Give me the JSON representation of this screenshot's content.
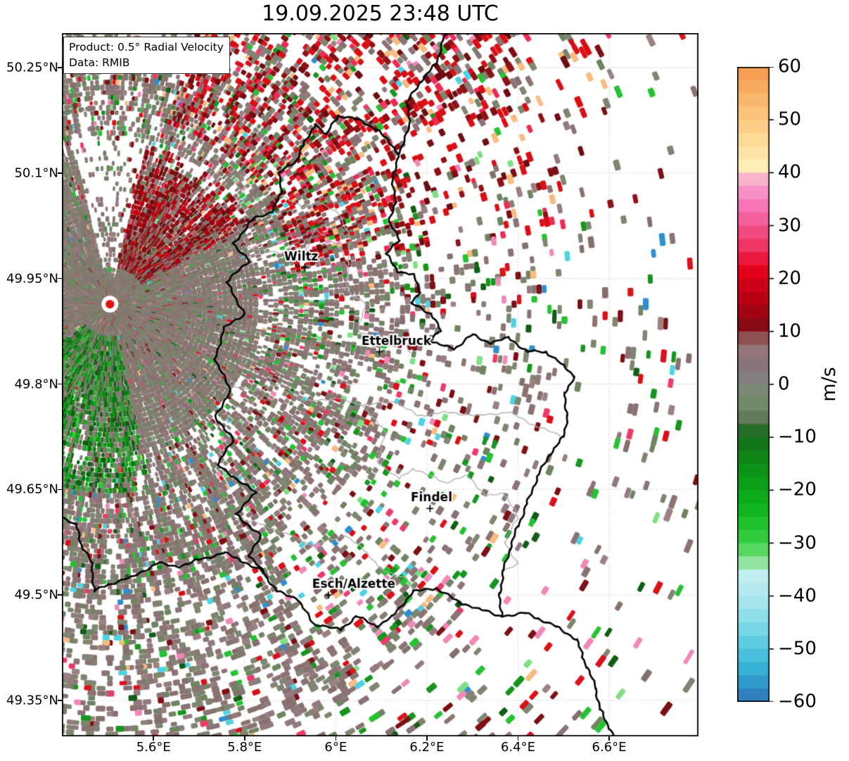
{
  "title": "19.09.2025 23:48 UTC",
  "info_box": {
    "line1": "Product: 0.5° Radial Velocity",
    "line2": "Data: RMIB"
  },
  "axes": {
    "x_ticks": [
      {
        "lon": 5.6,
        "label": "5.6°E"
      },
      {
        "lon": 5.8,
        "label": "5.8°E"
      },
      {
        "lon": 6.0,
        "label": "6°E"
      },
      {
        "lon": 6.2,
        "label": "6.2°E"
      },
      {
        "lon": 6.4,
        "label": "6.4°E"
      },
      {
        "lon": 6.6,
        "label": "6.6°E"
      }
    ],
    "y_ticks": [
      {
        "lat": 50.25,
        "label": "50.25°N"
      },
      {
        "lat": 50.1,
        "label": "50.1°N"
      },
      {
        "lat": 49.95,
        "label": "49.95°N"
      },
      {
        "lat": 49.8,
        "label": "49.8°N"
      },
      {
        "lat": 49.65,
        "label": "49.65°N"
      },
      {
        "lat": 49.5,
        "label": "49.5°N"
      },
      {
        "lat": 49.35,
        "label": "49.35°N"
      }
    ]
  },
  "colorbar": {
    "unit": "m/s",
    "ticks": [
      {
        "v": 60,
        "label": "60"
      },
      {
        "v": 50,
        "label": "50"
      },
      {
        "v": 40,
        "label": "40"
      },
      {
        "v": 30,
        "label": "30"
      },
      {
        "v": 20,
        "label": "20"
      },
      {
        "v": 10,
        "label": "10"
      },
      {
        "v": 0,
        "label": "0"
      },
      {
        "v": -10,
        "label": "−10"
      },
      {
        "v": -20,
        "label": "−20"
      },
      {
        "v": -30,
        "label": "−30"
      },
      {
        "v": -40,
        "label": "−40"
      },
      {
        "v": -50,
        "label": "−50"
      },
      {
        "v": -60,
        "label": "−60"
      }
    ],
    "band_step": 2.5
  },
  "chart_data": {
    "type": "heatmap",
    "subtype": "radar_ppi_radial_velocity",
    "title": "19.09.2025 23:48 UTC",
    "product": "0.5° Radial Velocity",
    "source": "RMIB",
    "units": "m/s",
    "value_range": [
      -60,
      60
    ],
    "extent": {
      "lon_min": 5.399,
      "lon_max": 6.796,
      "lat_min": 49.299,
      "lat_max": 50.299
    },
    "radar_site": {
      "lon": 5.5044,
      "lat": 49.9135
    },
    "cities": [
      {
        "name": "Wiltz",
        "lon": 5.932,
        "lat": 49.966,
        "label_dx": -5
      },
      {
        "name": "Ettelbruck",
        "lon": 6.096,
        "lat": 49.846,
        "label_dx": 24
      },
      {
        "name": "Findel",
        "lon": 6.207,
        "lat": 49.623,
        "label_dx": 2
      },
      {
        "name": "Esch/Alzette",
        "lon": 5.984,
        "lat": 49.5,
        "label_dx": 36
      }
    ],
    "grid": {
      "lons": [
        5.6,
        5.8,
        6.0,
        6.2,
        6.4,
        6.6
      ],
      "lats": [
        49.35,
        49.5,
        49.65,
        49.8,
        49.95,
        50.1,
        50.25
      ]
    },
    "colormap_stops": [
      [
        60,
        "#f5994e"
      ],
      [
        50,
        "#fcc97f"
      ],
      [
        45,
        "#fdde9f"
      ],
      [
        41,
        "#fdeeb9"
      ],
      [
        40,
        "#f9c4cd"
      ],
      [
        35,
        "#f87fc3"
      ],
      [
        30,
        "#f1558d"
      ],
      [
        25,
        "#ee2a55"
      ],
      [
        22,
        "#e8001c"
      ],
      [
        15,
        "#b00011"
      ],
      [
        10,
        "#7c0f13"
      ],
      [
        8,
        "#9b777b"
      ],
      [
        4,
        "#8a7478"
      ],
      [
        1,
        "#828082"
      ],
      [
        0,
        "#7e8878"
      ],
      [
        -4,
        "#6f8a67"
      ],
      [
        -8,
        "#596f52"
      ],
      [
        -9,
        "#166b1b"
      ],
      [
        -15,
        "#0d8c15"
      ],
      [
        -20,
        "#0aa518"
      ],
      [
        -25,
        "#15bd22"
      ],
      [
        -30,
        "#3bcf46"
      ],
      [
        -33,
        "#7fe085"
      ],
      [
        -36,
        "#c2eff0"
      ],
      [
        -40,
        "#aee8ee"
      ],
      [
        -45,
        "#84dce8"
      ],
      [
        -50,
        "#50c8de"
      ],
      [
        -55,
        "#2fa8d2"
      ],
      [
        -60,
        "#2f74b8"
      ]
    ],
    "borders": {
      "country": [
        [
          [
            5.955,
            50.17
          ],
          [
            5.98,
            50.155
          ],
          [
            6.005,
            50.182
          ],
          [
            6.05,
            50.176
          ],
          [
            6.09,
            50.162
          ],
          [
            6.115,
            50.146
          ],
          [
            6.138,
            50.128
          ],
          [
            6.125,
            50.095
          ],
          [
            6.131,
            50.058
          ],
          [
            6.118,
            50.03
          ],
          [
            6.14,
            50.004
          ],
          [
            6.11,
            49.985
          ],
          [
            6.136,
            49.96
          ],
          [
            6.17,
            49.956
          ],
          [
            6.186,
            49.93
          ],
          [
            6.165,
            49.915
          ],
          [
            6.21,
            49.9
          ],
          [
            6.23,
            49.876
          ],
          [
            6.205,
            49.86
          ],
          [
            6.26,
            49.85
          ],
          [
            6.3,
            49.87
          ],
          [
            6.34,
            49.858
          ],
          [
            6.38,
            49.866
          ],
          [
            6.42,
            49.846
          ],
          [
            6.462,
            49.846
          ],
          [
            6.5,
            49.826
          ],
          [
            6.525,
            49.81
          ],
          [
            6.502,
            49.788
          ],
          [
            6.508,
            49.755
          ],
          [
            6.5,
            49.725
          ],
          [
            6.47,
            49.7
          ],
          [
            6.442,
            49.668
          ],
          [
            6.42,
            49.63
          ],
          [
            6.4,
            49.598
          ],
          [
            6.382,
            49.565
          ],
          [
            6.368,
            49.535
          ],
          [
            6.36,
            49.503
          ],
          [
            6.364,
            49.47
          ],
          [
            6.315,
            49.48
          ],
          [
            6.27,
            49.49
          ],
          [
            6.22,
            49.51
          ],
          [
            6.17,
            49.505
          ],
          [
            6.125,
            49.47
          ],
          [
            6.09,
            49.455
          ],
          [
            6.045,
            49.47
          ],
          [
            6.01,
            49.45
          ],
          [
            5.95,
            49.46
          ],
          [
            5.915,
            49.495
          ],
          [
            5.87,
            49.505
          ],
          [
            5.842,
            49.532
          ],
          [
            5.81,
            49.555
          ],
          [
            5.835,
            49.585
          ],
          [
            5.78,
            49.615
          ],
          [
            5.825,
            49.645
          ],
          [
            5.74,
            49.685
          ],
          [
            5.775,
            49.72
          ],
          [
            5.735,
            49.755
          ],
          [
            5.77,
            49.79
          ],
          [
            5.735,
            49.835
          ],
          [
            5.755,
            49.88
          ],
          [
            5.8,
            49.9
          ],
          [
            5.76,
            49.945
          ],
          [
            5.81,
            49.975
          ],
          [
            5.775,
            50.0
          ],
          [
            5.82,
            50.035
          ],
          [
            5.86,
            50.045
          ],
          [
            5.88,
            50.07
          ],
          [
            5.875,
            50.1
          ],
          [
            5.91,
            50.115
          ],
          [
            5.93,
            50.14
          ],
          [
            5.955,
            50.17
          ]
        ],
        [
          [
            6.138,
            50.128
          ],
          [
            6.162,
            50.165
          ],
          [
            6.156,
            50.2
          ],
          [
            6.186,
            50.23
          ],
          [
            6.22,
            50.255
          ],
          [
            6.236,
            50.29
          ],
          [
            6.27,
            50.315
          ]
        ],
        [
          [
            5.395,
            49.613
          ],
          [
            5.43,
            49.6
          ],
          [
            5.44,
            49.575
          ],
          [
            5.465,
            49.545
          ],
          [
            5.47,
            49.505
          ],
          [
            5.5,
            49.515
          ],
          [
            5.55,
            49.525
          ],
          [
            5.61,
            49.545
          ],
          [
            5.655,
            49.54
          ],
          [
            5.7,
            49.55
          ],
          [
            5.755,
            49.56
          ],
          [
            5.79,
            49.55
          ],
          [
            5.842,
            49.532
          ]
        ],
        [
          [
            6.364,
            49.47
          ],
          [
            6.416,
            49.474
          ],
          [
            6.444,
            49.467
          ],
          [
            6.483,
            49.455
          ],
          [
            6.529,
            49.437
          ],
          [
            6.541,
            49.412
          ],
          [
            6.552,
            49.397
          ],
          [
            6.571,
            49.367
          ],
          [
            6.58,
            49.337
          ],
          [
            6.601,
            49.31
          ],
          [
            6.615,
            49.295
          ]
        ]
      ],
      "regions": [
        [
          [
            5.8,
            49.995
          ],
          [
            5.88,
            49.985
          ],
          [
            5.905,
            50.0
          ],
          [
            5.93,
            49.985
          ],
          [
            5.955,
            50.02
          ],
          [
            6.0,
            50.0
          ],
          [
            6.03,
            49.97
          ],
          [
            6.02,
            49.935
          ],
          [
            6.065,
            49.915
          ],
          [
            6.05,
            49.875
          ],
          [
            6.095,
            49.86
          ],
          [
            6.14,
            49.865
          ],
          [
            6.165,
            49.845
          ]
        ],
        [
          [
            5.74,
            49.8
          ],
          [
            5.82,
            49.79
          ],
          [
            5.88,
            49.8
          ],
          [
            5.93,
            49.775
          ],
          [
            6.0,
            49.78
          ],
          [
            6.06,
            49.77
          ],
          [
            6.13,
            49.775
          ],
          [
            6.18,
            49.755
          ],
          [
            6.24,
            49.76
          ],
          [
            6.31,
            49.755
          ],
          [
            6.38,
            49.76
          ],
          [
            6.44,
            49.74
          ],
          [
            6.5,
            49.725
          ]
        ],
        [
          [
            6.06,
            49.77
          ],
          [
            6.11,
            49.73
          ],
          [
            6.09,
            49.69
          ],
          [
            6.14,
            49.665
          ],
          [
            6.17,
            49.68
          ],
          [
            6.24,
            49.66
          ],
          [
            6.29,
            49.67
          ],
          [
            6.33,
            49.64
          ],
          [
            6.37,
            49.645
          ],
          [
            6.4,
            49.61
          ],
          [
            6.37,
            49.575
          ],
          [
            6.4,
            49.545
          ],
          [
            6.368,
            49.535
          ]
        ],
        [
          [
            5.78,
            49.61
          ],
          [
            5.84,
            49.6
          ],
          [
            5.9,
            49.585
          ],
          [
            5.95,
            49.57
          ],
          [
            6.02,
            49.585
          ],
          [
            6.07,
            49.56
          ],
          [
            6.1,
            49.535
          ],
          [
            6.155,
            49.525
          ],
          [
            6.17,
            49.505
          ]
        ],
        [
          [
            5.88,
            50.07
          ],
          [
            5.93,
            50.05
          ],
          [
            5.96,
            50.06
          ],
          [
            6.01,
            50.04
          ],
          [
            6.03,
            50.01
          ],
          [
            6.03,
            49.97
          ]
        ]
      ]
    },
    "field": {
      "seed": 20250919,
      "rays": 540,
      "r_start": 13,
      "r_step": 7.2,
      "r_max": 1060,
      "bin_width": 7,
      "near_r": 210,
      "spoke_fraction": 0.1,
      "palettes": {
        "base": [
          [
            "#8b7373",
            4
          ],
          [
            "#7e8570",
            3
          ],
          [
            "#937a7e",
            2
          ],
          [
            "#6f8562",
            1.6
          ],
          [
            "#84706c",
            1.2
          ],
          [
            "#9b8181",
            0.8
          ]
        ],
        "accents": [
          [
            "#dc1018",
            2.5
          ],
          [
            "#7d1014",
            2.5
          ],
          [
            "#25c232",
            2.5
          ],
          [
            "#16961f",
            1.8
          ],
          [
            "#115f17",
            1.2
          ],
          [
            "#f288b8",
            1.2
          ],
          [
            "#ee3a68",
            1.0
          ],
          [
            "#4fd2e2",
            1.0
          ],
          [
            "#2e8fd0",
            0.6
          ],
          [
            "#f8bb80",
            0.7
          ],
          [
            "#7ee085",
            0.8
          ],
          [
            "#8b7373",
            2.0
          ],
          [
            "#7e8570",
            1.5
          ]
        ],
        "reds": [
          [
            "#8f1115",
            3
          ],
          [
            "#6e0d10",
            2.5
          ],
          [
            "#b00011",
            2
          ],
          [
            "#d90f16",
            1.2
          ]
        ],
        "reds_far": [
          [
            "#d90f16",
            3
          ],
          [
            "#8f1115",
            2
          ],
          [
            "#ee2a55",
            1
          ],
          [
            "#f8bb80",
            0.8
          ],
          [
            "#6e0d10",
            1.5
          ]
        ],
        "greens": [
          [
            "#115f17",
            3
          ],
          [
            "#0d8c15",
            2.5
          ],
          [
            "#18a820",
            2
          ],
          [
            "#2ec538",
            1
          ]
        ]
      },
      "sectors": [
        {
          "name": "north-gap",
          "az": [
            347,
            373
          ],
          "r": [
            40,
            240
          ],
          "density_mul": 0.15
        },
        {
          "name": "nne-inbound-reds",
          "az": [
            8,
            60
          ],
          "r": [
            55,
            235
          ],
          "palette": "reds",
          "palette_p": 0.6
        },
        {
          "name": "south-outbound-greens",
          "az": [
            168,
            232
          ],
          "r": [
            45,
            265
          ],
          "palette": "greens",
          "palette_p": 0.55
        },
        {
          "name": "south-blanket",
          "az": [
            148,
            240
          ],
          "r": [
            210,
            660
          ],
          "density_mul": 1.6,
          "density_cap": 0.8,
          "accent_p": 0.18
        },
        {
          "name": "ne-streaks",
          "az": [
            18,
            80
          ],
          "r": [
            270,
            780
          ],
          "density_mul": 1.35,
          "palette": "reds_far",
          "palette_p": 0.5
        },
        {
          "name": "east-sparse",
          "az": [
            62,
            130
          ],
          "r": [
            460,
            1100
          ],
          "density_mul": 0.5
        }
      ]
    }
  }
}
